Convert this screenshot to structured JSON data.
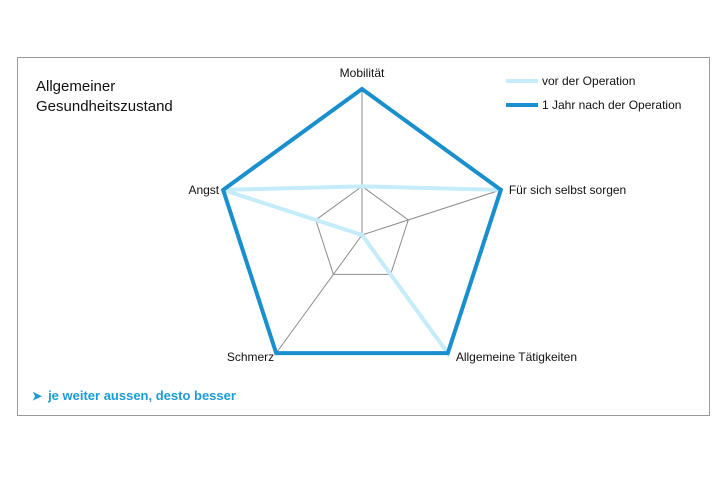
{
  "colors": {
    "before": "#c5ecf9",
    "after": "#1a8fce",
    "grid": "#8c8c8c",
    "note": "#1d9bd7"
  },
  "header": {
    "title_line1": "Allgemeiner",
    "title_line2": "Gesundheitszustand"
  },
  "note": {
    "arrow_icon": "right-triangle-icon",
    "text": "je weiter aussen, desto besser"
  },
  "chart_data": {
    "type": "radar",
    "categories": [
      "Mobilität",
      "Für sich selbst sorgen",
      "Allgemeine Tätigkeiten",
      "Schmerz",
      "Angst"
    ],
    "series": [
      {
        "name": "vor der Operation",
        "values": [
          2,
          4,
          4,
          1,
          4
        ]
      },
      {
        "name": "1 Jahr nach der Operation",
        "values": [
          4,
          4,
          4,
          4,
          4
        ]
      }
    ],
    "rlim": [
      1,
      4
    ],
    "grid_rings": [
      2,
      4
    ],
    "legend_position": "top-right"
  }
}
